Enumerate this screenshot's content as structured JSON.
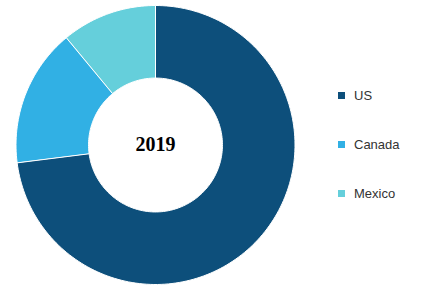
{
  "chart_data": {
    "type": "donut",
    "title": "2019",
    "categories": [
      "US",
      "Canada",
      "Mexico"
    ],
    "values": [
      73,
      16,
      11
    ],
    "colors": [
      "#0d4f7b",
      "#31b0e4",
      "#65cfdb"
    ],
    "legend": "right"
  }
}
